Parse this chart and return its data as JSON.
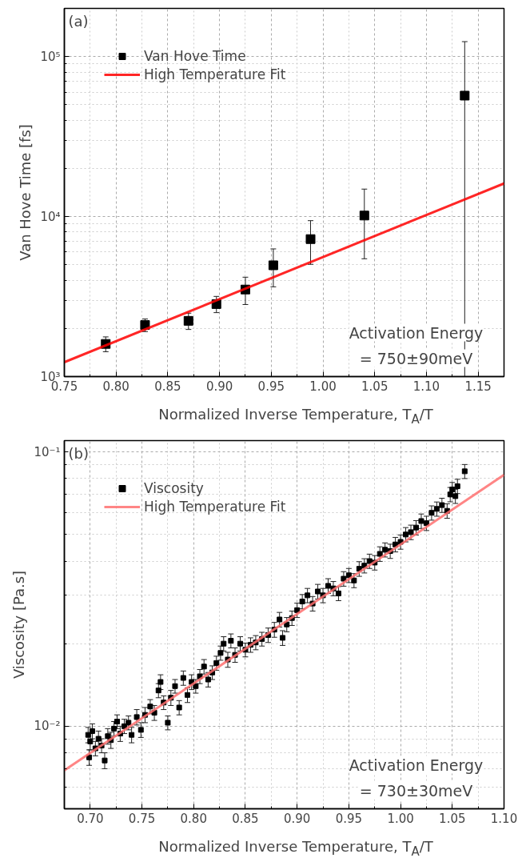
{
  "chart_data": [
    {
      "type": "scatter",
      "annotations": [
        "(a)",
        "Activation Energy",
        "= 750±90meV"
      ],
      "xlabel": "Normalized Inverse Temperature, T$_{A}$/T",
      "ylabel": "Van Hove Time [fs]",
      "log": "y",
      "grid": true,
      "legend": "top left",
      "xlim": [
        0.75,
        1.175
      ],
      "ylim": [
        1000,
        200000
      ],
      "xticks": [
        0.75,
        {
          "value": 0.8,
          "label": "0.80"
        },
        0.85,
        {
          "value": 0.9,
          "label": "0.90"
        },
        0.95,
        {
          "value": 1.0,
          "label": "1.00"
        },
        1.05,
        {
          "value": 1.1,
          "label": "1.10"
        },
        1.15
      ],
      "yticks": [
        {
          "value": 1000,
          "label": "10³"
        },
        {
          "value": 10000,
          "label": "10⁴"
        },
        {
          "value": 100000,
          "label": "10⁵"
        }
      ],
      "series": [
        {
          "name": "Van Hove Time",
          "type": "scatter",
          "marker": "square",
          "color": "#000000",
          "x": [
            0.79,
            0.828,
            0.87,
            0.897,
            0.925,
            0.952,
            0.988,
            1.04,
            1.137
          ],
          "values": [
            1600,
            2100,
            2230,
            2840,
            3500,
            4960,
            7230,
            10150,
            57000
          ],
          "errors": [
            170,
            190,
            260,
            330,
            680,
            1320,
            2200,
            4700,
            [
              1000,
              124000
            ]
          ]
        },
        {
          "name": "High Temperature Fit",
          "type": "line",
          "line_style": "solid",
          "color": "#ff0000",
          "x": [
            0.75,
            1.175
          ],
          "values": [
            1230,
            16100
          ]
        }
      ]
    },
    {
      "type": "scatter",
      "annotations": [
        "(b)",
        "Activation Energy",
        "= 730±30meV"
      ],
      "xlabel": "Normalized Inverse Temperature, T$_{A}$/T",
      "ylabel": "Viscosity [Pa.s]",
      "log": "y",
      "grid": true,
      "legend": "top left",
      "xlim": [
        0.675,
        1.1
      ],
      "ylim": [
        0.005,
        0.11
      ],
      "xticks": [
        {
          "value": 0.7,
          "label": "0.70"
        },
        0.75,
        {
          "value": 0.8,
          "label": "0.80"
        },
        0.85,
        {
          "value": 0.9,
          "label": "0.90"
        },
        0.95,
        {
          "value": 1.0,
          "label": "1.00"
        },
        1.05,
        {
          "value": 1.1,
          "label": "1.10"
        }
      ],
      "yticks": [
        {
          "value": 0.01,
          "label": "10⁻²"
        },
        {
          "value": 0.1,
          "label": "10⁻¹"
        }
      ],
      "series": [
        {
          "name": "Viscosity",
          "type": "scatter",
          "marker": "square",
          "color": "#000000",
          "x": [
            0.698,
            0.699,
            0.7,
            0.702,
            0.705,
            0.708,
            0.711,
            0.714,
            0.717,
            0.72,
            0.723,
            0.726,
            0.729,
            0.733,
            0.737,
            0.74,
            0.745,
            0.749,
            0.753,
            0.758,
            0.762,
            0.766,
            0.768,
            0.771,
            0.775,
            0.778,
            0.782,
            0.786,
            0.79,
            0.794,
            0.798,
            0.802,
            0.806,
            0.81,
            0.814,
            0.818,
            0.822,
            0.826,
            0.829,
            0.833,
            0.836,
            0.84,
            0.845,
            0.85,
            0.855,
            0.86,
            0.866,
            0.872,
            0.878,
            0.883,
            0.886,
            0.89,
            0.895,
            0.9,
            0.905,
            0.91,
            0.915,
            0.92,
            0.925,
            0.93,
            0.935,
            0.94,
            0.945,
            0.95,
            0.955,
            0.96,
            0.965,
            0.97,
            0.975,
            0.98,
            0.985,
            0.99,
            0.995,
            1.0,
            1.005,
            1.01,
            1.015,
            1.02,
            1.025,
            1.03,
            1.035,
            1.04,
            1.045,
            1.048,
            1.05,
            1.053,
            1.055,
            1.062
          ],
          "values": [
            0.0093,
            0.0077,
            0.0088,
            0.0096,
            0.0083,
            0.009,
            0.0085,
            0.0075,
            0.0092,
            0.0089,
            0.0098,
            0.0104,
            0.0094,
            0.01,
            0.0103,
            0.0093,
            0.0108,
            0.0097,
            0.011,
            0.0118,
            0.0112,
            0.0135,
            0.0145,
            0.0122,
            0.0103,
            0.0127,
            0.014,
            0.0117,
            0.015,
            0.013,
            0.0145,
            0.014,
            0.0152,
            0.0165,
            0.0148,
            0.0157,
            0.017,
            0.0185,
            0.02,
            0.0175,
            0.0205,
            0.0182,
            0.02,
            0.019,
            0.0198,
            0.0202,
            0.0208,
            0.0215,
            0.0225,
            0.0245,
            0.021,
            0.0235,
            0.0248,
            0.0265,
            0.0285,
            0.03,
            0.028,
            0.031,
            0.03,
            0.0325,
            0.0318,
            0.0305,
            0.0345,
            0.0355,
            0.034,
            0.0375,
            0.0385,
            0.04,
            0.0395,
            0.0425,
            0.044,
            0.0435,
            0.046,
            0.047,
            0.05,
            0.051,
            0.053,
            0.056,
            0.055,
            0.06,
            0.062,
            0.064,
            0.061,
            0.07,
            0.073,
            0.069,
            0.075,
            0.085
          ],
          "errors": [
            0.0006,
            0.0005,
            0.0006,
            0.0006,
            0.0005,
            0.0006,
            0.0005,
            0.0005,
            0.0006,
            0.0006,
            0.0006,
            0.0006,
            0.0006,
            0.0006,
            0.0006,
            0.0006,
            0.0007,
            0.0006,
            0.0007,
            0.0007,
            0.0007,
            0.0008,
            0.0009,
            0.0007,
            0.0006,
            0.0008,
            0.0008,
            0.0007,
            0.0009,
            0.0008,
            0.0009,
            0.0008,
            0.0009,
            0.001,
            0.0009,
            0.0009,
            0.001,
            0.0011,
            0.0012,
            0.0011,
            0.0012,
            0.0011,
            0.0012,
            0.0011,
            0.0012,
            0.0012,
            0.0012,
            0.0013,
            0.0014,
            0.0015,
            0.0013,
            0.0014,
            0.0015,
            0.0016,
            0.0017,
            0.0018,
            0.0017,
            0.0019,
            0.0018,
            0.002,
            0.0019,
            0.0018,
            0.0021,
            0.0021,
            0.002,
            0.0023,
            0.0023,
            0.0024,
            0.0024,
            0.0026,
            0.0026,
            0.0026,
            0.0028,
            0.0028,
            0.003,
            0.0031,
            0.0032,
            0.0034,
            0.0033,
            0.0036,
            0.0037,
            0.0038,
            0.0037,
            0.0042,
            0.0044,
            0.0041,
            0.0045,
            0.005
          ]
        },
        {
          "name": "High Temperature Fit",
          "type": "line",
          "line_style": "solid",
          "color": "#ff7070",
          "x": [
            0.675,
            1.1
          ],
          "values": [
            0.0069,
            0.0825
          ]
        }
      ]
    }
  ]
}
